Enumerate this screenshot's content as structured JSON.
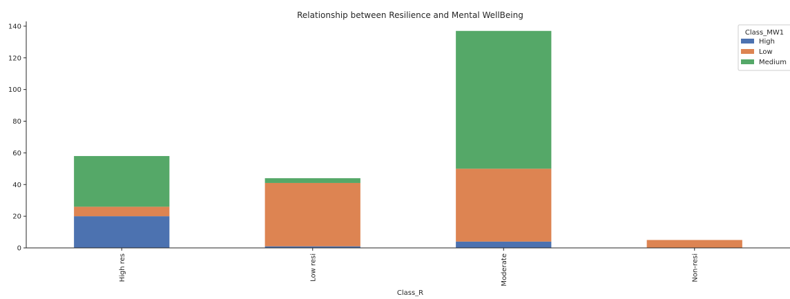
{
  "chart_data": {
    "type": "bar",
    "stacked": true,
    "title": "Relationship between Resilience and Mental WellBeing",
    "xlabel": "Class_R",
    "ylabel": "",
    "categories": [
      "High res",
      "Low resi",
      "Moderate",
      "Non-resi"
    ],
    "ylim": [
      0,
      143
    ],
    "yticks": [
      0,
      20,
      40,
      60,
      80,
      100,
      120,
      140
    ],
    "grid": false,
    "legend": {
      "title": "Class_MW1",
      "placement": "top-right"
    },
    "series": [
      {
        "name": "High",
        "color": "#4c72b0",
        "values": [
          20,
          1,
          4,
          0
        ]
      },
      {
        "name": "Low",
        "color": "#dd8452",
        "values": [
          6,
          40,
          46,
          5
        ]
      },
      {
        "name": "Medium",
        "color": "#55a868",
        "values": [
          32,
          3,
          87,
          0
        ]
      }
    ]
  }
}
